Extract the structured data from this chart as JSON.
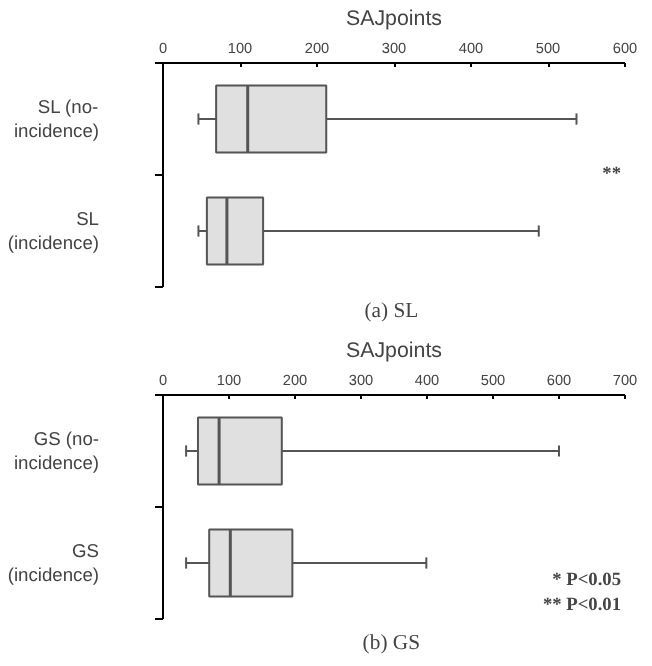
{
  "chart_data": [
    {
      "type": "box",
      "orientation": "horizontal",
      "title": "(a)  SL",
      "xlabel": "SAJpoints",
      "categories": [
        "SL (no-incidence)",
        "SL (incidence)"
      ],
      "boxes": [
        {
          "low": 46,
          "q1": 69,
          "median": 110,
          "q3": 212,
          "high": 537
        },
        {
          "low": 46,
          "q1": 57,
          "median": 83,
          "q3": 130,
          "high": 488
        }
      ],
      "color": "#e0e0e0",
      "xlim": [
        0,
        600
      ],
      "xticks": [
        0,
        100,
        200,
        300,
        400,
        500,
        600
      ],
      "grid": false,
      "annotations": [
        "**"
      ]
    },
    {
      "type": "box",
      "orientation": "horizontal",
      "title": "(b)  GS",
      "xlabel": "SAJpoints",
      "categories": [
        "GS (no-incidence)",
        "GS (incidence)"
      ],
      "boxes": [
        {
          "low": 35,
          "q1": 53,
          "median": 85,
          "q3": 180,
          "high": 600
        },
        {
          "low": 35,
          "q1": 70,
          "median": 102,
          "q3": 196,
          "high": 399
        }
      ],
      "color": "#e0e0e0",
      "xlim": [
        0,
        700
      ],
      "xticks": [
        0,
        100,
        200,
        300,
        400,
        500,
        600,
        700
      ],
      "grid": false,
      "annotations": [
        "* P<0.05",
        "** P<0.01"
      ]
    }
  ]
}
